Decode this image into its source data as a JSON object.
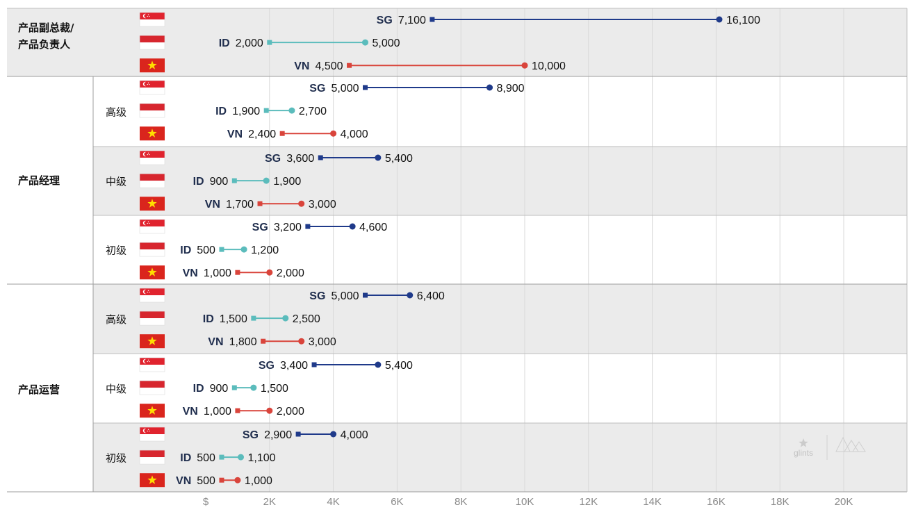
{
  "chart_data": {
    "type": "dumbbell",
    "title": "",
    "xlabel": "",
    "ylabel": "",
    "xlim": [
      0,
      22000
    ],
    "x_ticks": [
      {
        "value": 0,
        "label": "$"
      },
      {
        "value": 2000,
        "label": "2K"
      },
      {
        "value": 4000,
        "label": "4K"
      },
      {
        "value": 6000,
        "label": "6K"
      },
      {
        "value": 8000,
        "label": "8K"
      },
      {
        "value": 10000,
        "label": "10K"
      },
      {
        "value": 12000,
        "label": "12K"
      },
      {
        "value": 14000,
        "label": "14K"
      },
      {
        "value": 16000,
        "label": "16K"
      },
      {
        "value": 18000,
        "label": "18K"
      },
      {
        "value": 20000,
        "label": "20K"
      }
    ],
    "grid": true,
    "country_colors": {
      "SG": "#1f3a8a",
      "ID": "#5bbcbc",
      "VN": "#d9443b"
    },
    "watermark": "glints",
    "groups": [
      {
        "category": "产品副总裁/\n产品负责人",
        "level": "",
        "shaded": true,
        "rows": [
          {
            "country": "SG",
            "flag": "singapore-flag-icon",
            "min": 7100,
            "max": 16100,
            "min_label": "7,100",
            "max_label": "16,100"
          },
          {
            "country": "ID",
            "flag": "indonesia-flag-icon",
            "min": 2000,
            "max": 5000,
            "min_label": "2,000",
            "max_label": "5,000"
          },
          {
            "country": "VN",
            "flag": "vietnam-flag-icon",
            "min": 4500,
            "max": 10000,
            "min_label": "4,500",
            "max_label": "10,000"
          }
        ]
      },
      {
        "category": "",
        "level": "高级",
        "shaded": false,
        "rows": [
          {
            "country": "SG",
            "flag": "singapore-flag-icon",
            "min": 5000,
            "max": 8900,
            "min_label": "5,000",
            "max_label": "8,900"
          },
          {
            "country": "ID",
            "flag": "indonesia-flag-icon",
            "min": 1900,
            "max": 2700,
            "min_label": "1,900",
            "max_label": "2,700"
          },
          {
            "country": "VN",
            "flag": "vietnam-flag-icon",
            "min": 2400,
            "max": 4000,
            "min_label": "2,400",
            "max_label": "4,000"
          }
        ]
      },
      {
        "category": "产品经理",
        "level": "中级",
        "shaded": true,
        "rows": [
          {
            "country": "SG",
            "flag": "singapore-flag-icon",
            "min": 3600,
            "max": 5400,
            "min_label": "3,600",
            "max_label": "5,400"
          },
          {
            "country": "ID",
            "flag": "indonesia-flag-icon",
            "min": 900,
            "max": 1900,
            "min_label": "900",
            "max_label": "1,900"
          },
          {
            "country": "VN",
            "flag": "vietnam-flag-icon",
            "min": 1700,
            "max": 3000,
            "min_label": "1,700",
            "max_label": "3,000"
          }
        ]
      },
      {
        "category": "",
        "level": "初级",
        "shaded": false,
        "rows": [
          {
            "country": "SG",
            "flag": "singapore-flag-icon",
            "min": 3200,
            "max": 4600,
            "min_label": "3,200",
            "max_label": "4,600"
          },
          {
            "country": "ID",
            "flag": "indonesia-flag-icon",
            "min": 500,
            "max": 1200,
            "min_label": "500",
            "max_label": "1,200"
          },
          {
            "country": "VN",
            "flag": "vietnam-flag-icon",
            "min": 1000,
            "max": 2000,
            "min_label": "1,000",
            "max_label": "2,000"
          }
        ]
      },
      {
        "category": "",
        "level": "高级",
        "shaded": true,
        "rows": [
          {
            "country": "SG",
            "flag": "singapore-flag-icon",
            "min": 5000,
            "max": 6400,
            "min_label": "5,000",
            "max_label": "6,400"
          },
          {
            "country": "ID",
            "flag": "indonesia-flag-icon",
            "min": 1500,
            "max": 2500,
            "min_label": "1,500",
            "max_label": "2,500"
          },
          {
            "country": "VN",
            "flag": "vietnam-flag-icon",
            "min": 1800,
            "max": 3000,
            "min_label": "1,800",
            "max_label": "3,000"
          }
        ]
      },
      {
        "category": "产品运营",
        "level": "中级",
        "shaded": false,
        "rows": [
          {
            "country": "SG",
            "flag": "singapore-flag-icon",
            "min": 3400,
            "max": 5400,
            "min_label": "3,400",
            "max_label": "5,400"
          },
          {
            "country": "ID",
            "flag": "indonesia-flag-icon",
            "min": 900,
            "max": 1500,
            "min_label": "900",
            "max_label": "1,500"
          },
          {
            "country": "VN",
            "flag": "vietnam-flag-icon",
            "min": 1000,
            "max": 2000,
            "min_label": "1,000",
            "max_label": "2,000"
          }
        ]
      },
      {
        "category": "",
        "level": "初级",
        "shaded": true,
        "rows": [
          {
            "country": "SG",
            "flag": "singapore-flag-icon",
            "min": 2900,
            "max": 4000,
            "min_label": "2,900",
            "max_label": "4,000"
          },
          {
            "country": "ID",
            "flag": "indonesia-flag-icon",
            "min": 500,
            "max": 1100,
            "min_label": "500",
            "max_label": "1,100"
          },
          {
            "country": "VN",
            "flag": "vietnam-flag-icon",
            "min": 500,
            "max": 1000,
            "min_label": "500",
            "max_label": "1,000"
          }
        ]
      }
    ]
  }
}
